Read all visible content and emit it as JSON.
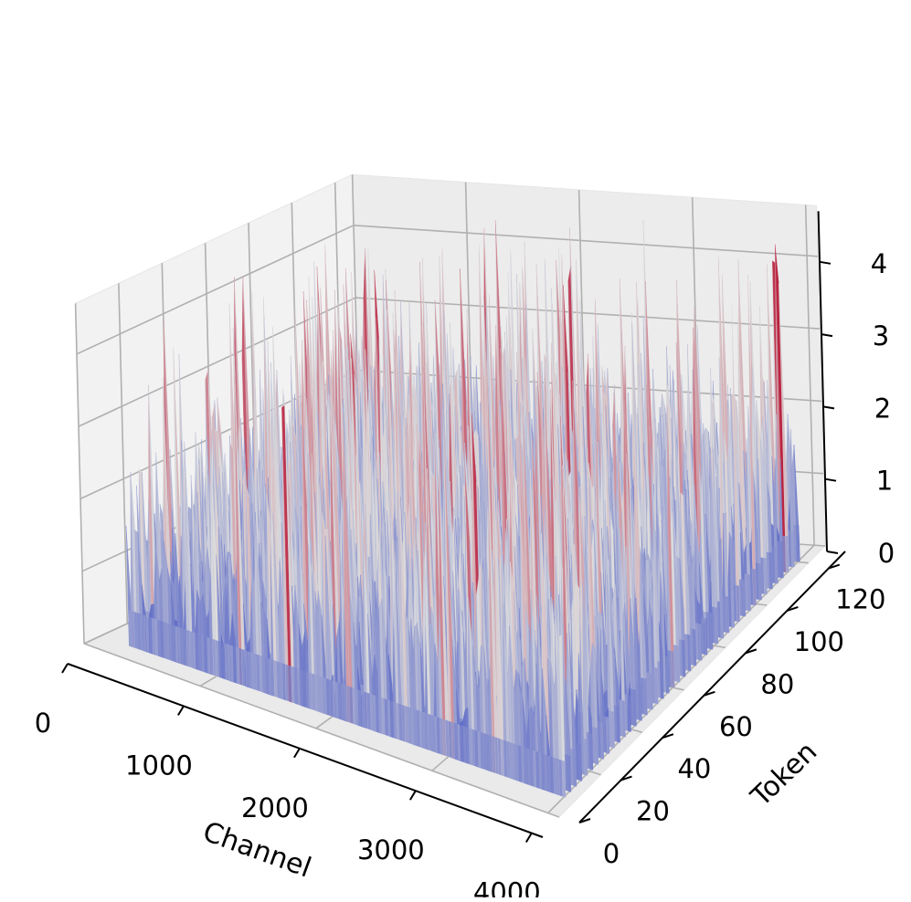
{
  "chart_data": {
    "type": "surface",
    "title": "",
    "xlabel": "Channel",
    "ylabel": "Token",
    "zlabel": "",
    "xlim": [
      0,
      4096
    ],
    "ylim": [
      0,
      128
    ],
    "zlim": [
      0,
      4.7
    ],
    "x_ticks": [
      "0",
      "1000",
      "2000",
      "3000",
      "4000"
    ],
    "y_ticks": [
      "0",
      "20",
      "40",
      "60",
      "80",
      "100",
      "120"
    ],
    "z_ticks": [
      "0",
      "1",
      "2",
      "3",
      "4"
    ],
    "grid": true,
    "colormap": "coolwarm",
    "colors": {
      "low": "#3b4cc0",
      "mid": "#dddddd",
      "high": "#b40426",
      "pane": "#f2f2f2",
      "grid": "#b0b0b0"
    },
    "surface": {
      "channels": 4096,
      "tokens": 128,
      "typical_value_range": [
        0,
        3
      ],
      "max_value": 4.6
    }
  }
}
